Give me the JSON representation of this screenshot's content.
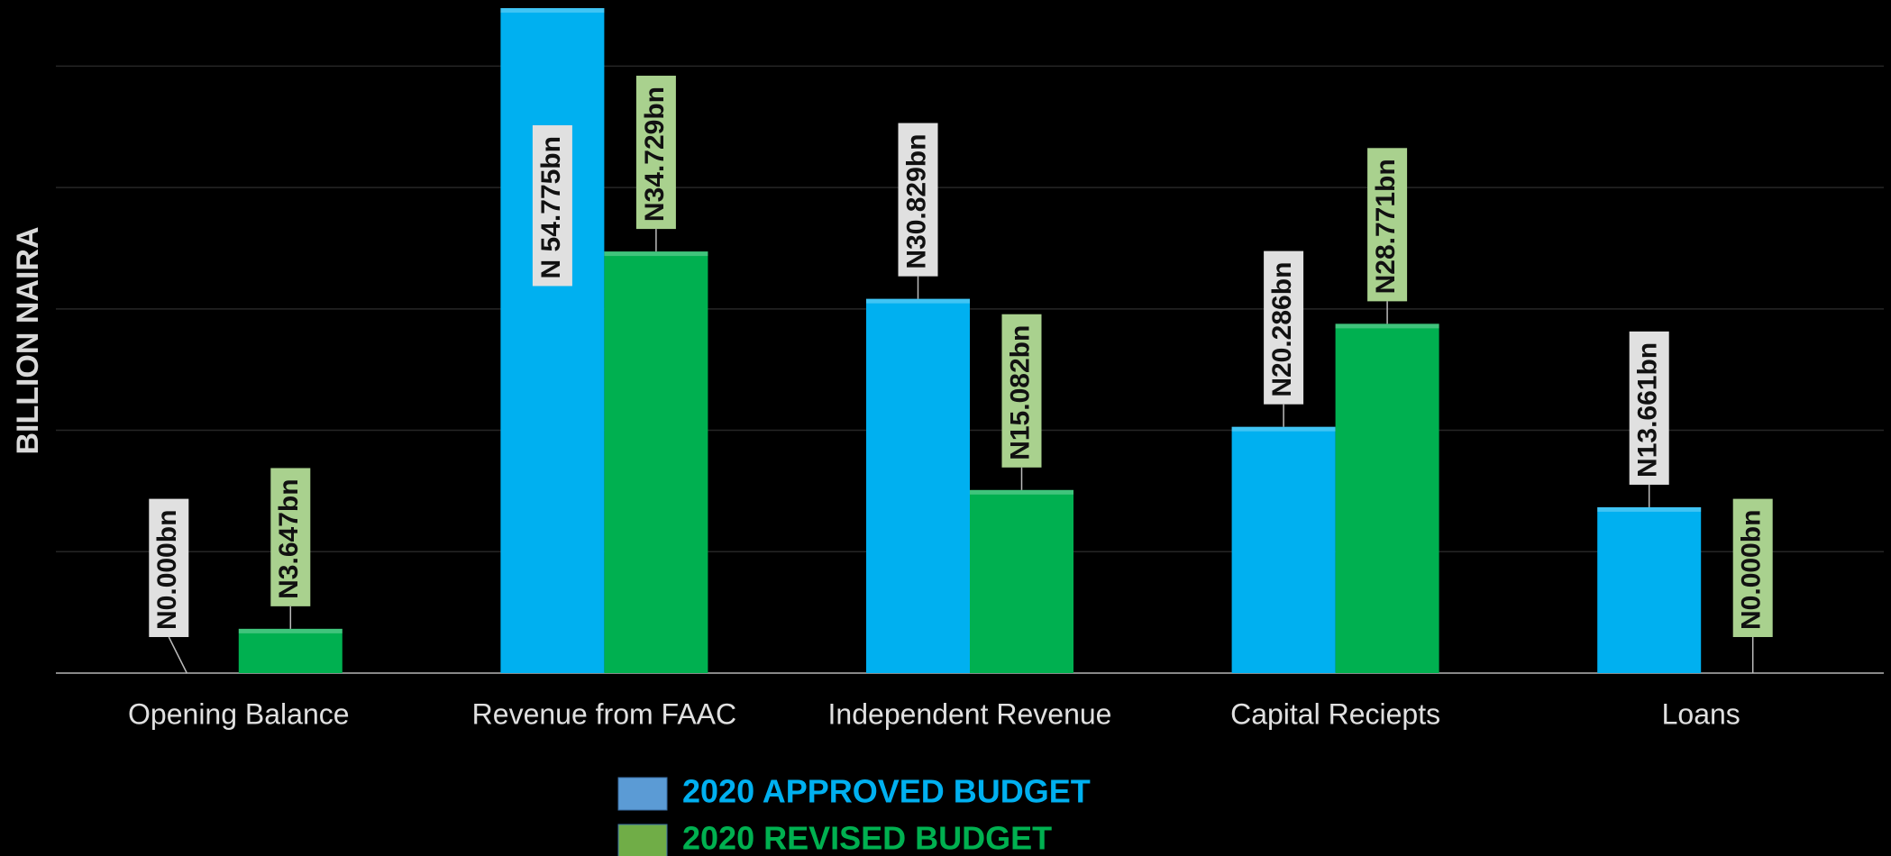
{
  "chart_data": {
    "type": "bar",
    "y_label": "BILLION NAIRA",
    "categories": [
      "Opening Balance",
      "Revenue from FAAC",
      "Independent Revenue",
      "Capital Reciepts",
      "Loans"
    ],
    "series": [
      {
        "name": "2020 APPROVED BUDGET",
        "color": "#00b0f0",
        "legend_color": "#5b9bd5",
        "label_box": "#e0e0e0",
        "values": [
          0,
          54.775,
          30.829,
          20.286,
          13.661
        ],
        "value_labels": [
          "N0.000bn",
          "N 54.775bn",
          "N30.829bn",
          "N20.286bn",
          "N13.661bn"
        ]
      },
      {
        "name": "2020 REVISED BUDGET",
        "color": "#00b050",
        "legend_color": "#70ad47",
        "label_box": "#a9d18e",
        "values": [
          3.647,
          34.729,
          15.082,
          28.771,
          0
        ],
        "value_labels": [
          "N3.647bn",
          "N34.729bn",
          "N15.082bn",
          "N28.771bn",
          "N0.000bn"
        ]
      }
    ],
    "ylim": [
      0,
      55
    ],
    "yticks": [
      0,
      10,
      20,
      30,
      40,
      50
    ],
    "grid": true
  }
}
